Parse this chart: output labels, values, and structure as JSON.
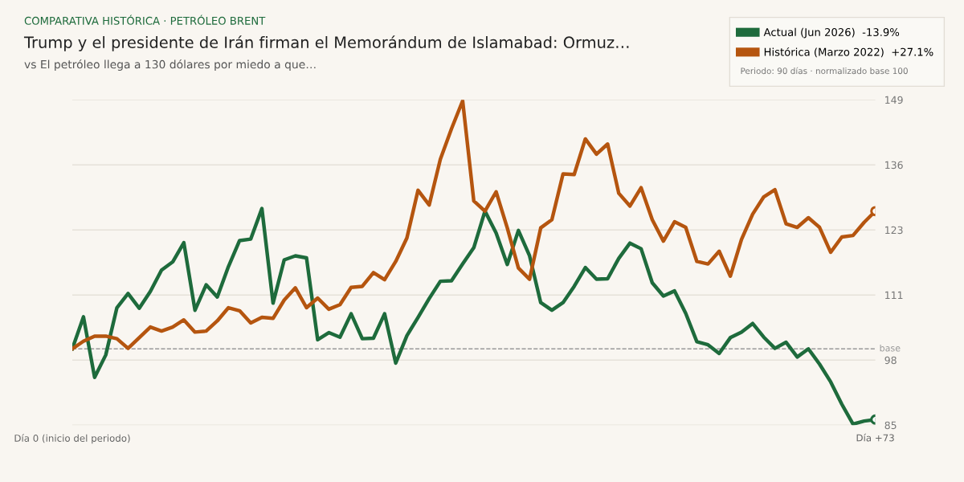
{
  "chart_data": {
    "type": "line",
    "title": "Trump y el presidente de Irán firman el Memorándum de Islamabad: Ormuz…",
    "subtitle": "vs El petróleo llega a 130 dólares por miedo a que…",
    "annotations": [
      "COMPARATIVA HISTÓRICA · PETRÓLEO BRENT",
      "Periodo: 90 días · normalizado base 100"
    ],
    "categories": [
      "Día 0 (inicio del periodo)",
      null,
      null,
      null,
      null,
      null,
      null,
      null,
      null,
      null,
      null,
      null,
      null,
      null,
      null,
      null,
      null,
      null,
      null,
      null,
      null,
      null,
      null,
      null,
      null,
      null,
      null,
      null,
      null,
      null,
      null,
      null,
      null,
      null,
      null,
      null,
      null,
      null,
      null,
      null,
      null,
      null,
      null,
      null,
      null,
      null,
      null,
      null,
      null,
      null,
      null,
      null,
      null,
      null,
      null,
      null,
      null,
      null,
      null,
      null,
      null,
      null,
      null,
      null,
      null,
      null,
      null,
      null,
      null,
      null,
      null,
      null,
      "Día +73"
    ],
    "series": [
      {
        "name": "Actual (Jun 2026)  -13.9%",
        "color": "#1e6b3c",
        "values": [
          100,
          106.3,
          94.4,
          98.8,
          108.1,
          110.9,
          108.0,
          111.3,
          115.5,
          117.1,
          120.9,
          107.6,
          112.6,
          110.2,
          116.2,
          121.3,
          121.6,
          127.6,
          109.0,
          117.5,
          118.3,
          117.9,
          101.8,
          103.2,
          102.3,
          106.9,
          102.0,
          102.1,
          106.9,
          97.2,
          102.6,
          106.2,
          109.9,
          113.3,
          113.4,
          116.7,
          119.9,
          127.1,
          122.8,
          116.6,
          123.3,
          118.3,
          109.1,
          107.6,
          109.1,
          112.3,
          116.0,
          113.7,
          113.8,
          117.8,
          120.8,
          119.7,
          113.0,
          110.4,
          111.4,
          107.0,
          101.4,
          100.8,
          99.1,
          102.2,
          103.3,
          105.0,
          102.3,
          100.1,
          101.3,
          98.4,
          100.0,
          97.0,
          93.5,
          89.1,
          85.2,
          85.8,
          86.1
        ]
      },
      {
        "name": "Histórica (Marzo 2022)  +27.1%",
        "color": "#b5550f",
        "values": [
          100,
          101.5,
          102.5,
          102.5,
          102.0,
          100.1,
          102.2,
          104.3,
          103.5,
          104.3,
          105.7,
          103.3,
          103.5,
          105.5,
          108.1,
          107.5,
          105.1,
          106.2,
          106.0,
          109.6,
          112.0,
          108.1,
          110.0,
          107.8,
          108.7,
          112.1,
          112.3,
          115.0,
          113.6,
          117.2,
          121.8,
          131.2,
          128.3,
          137.3,
          143.3,
          148.8,
          129.1,
          127.1,
          130.9,
          123.8,
          115.9,
          113.7,
          123.8,
          125.4,
          134.4,
          134.3,
          141.3,
          138.3,
          140.3,
          130.6,
          128.1,
          131.7,
          125.4,
          121.2,
          125.0,
          123.9,
          117.2,
          116.7,
          119.2,
          114.3,
          121.5,
          126.5,
          129.9,
          131.3,
          124.6,
          123.9,
          125.8,
          123.9,
          119.0,
          122.0,
          122.3,
          124.9,
          127.1
        ]
      }
    ],
    "ylim": [
      85,
      149
    ],
    "yticks": [
      85,
      {
        "value": 97.8,
        "label": "98"
      },
      {
        "value": 110.6,
        "label": "111"
      },
      {
        "value": 123.4,
        "label": "123"
      },
      {
        "value": 136.2,
        "label": "136"
      },
      149
    ],
    "ref_lines": [
      {
        "axis": "y",
        "value": 100,
        "label": "base",
        "color": "#999999",
        "line_style": "dashed"
      }
    ],
    "grid": "y",
    "legend": "top right",
    "line_style": "solid"
  }
}
